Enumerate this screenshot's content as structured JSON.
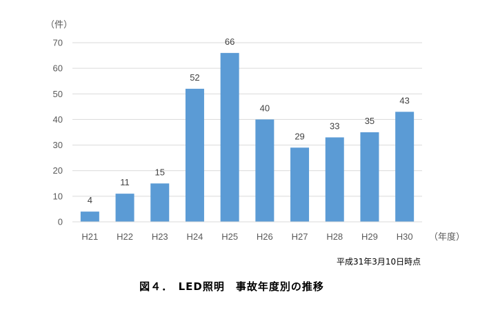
{
  "chart_data": {
    "type": "bar",
    "categories": [
      "H21",
      "H22",
      "H23",
      "H24",
      "H25",
      "H26",
      "H27",
      "H28",
      "H29",
      "H30"
    ],
    "values": [
      4,
      11,
      15,
      52,
      66,
      40,
      29,
      33,
      35,
      43
    ],
    "title": "図４．　LED照明　事故年度別の推移",
    "ylabel": "（件）",
    "xlabel": "（年度）",
    "ylim": [
      0,
      70
    ],
    "yticks": [
      "0",
      "10",
      "20",
      "30",
      "40",
      "50",
      "60",
      "70"
    ],
    "grid": true,
    "bar_color": "#5B9BD5",
    "note": "平成31年3月10日時点"
  }
}
